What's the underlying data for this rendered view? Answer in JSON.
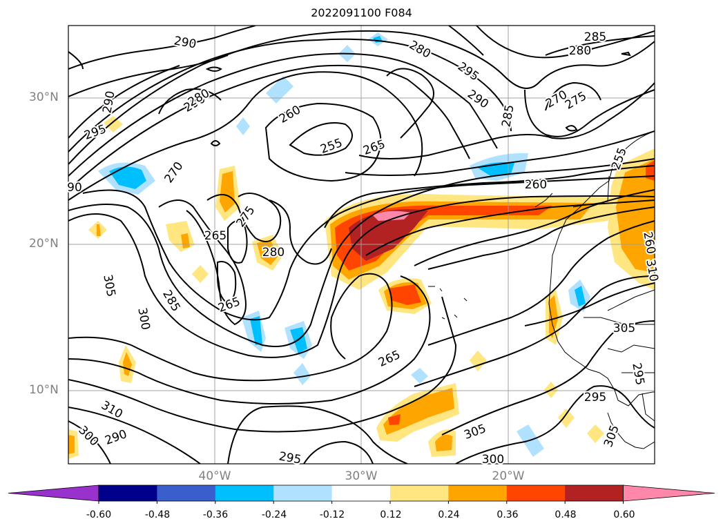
{
  "title": "2022091100 F084",
  "latitude_labels": [
    "30°N",
    "20°N",
    "10°N"
  ],
  "longitude_labels": [
    "40°W",
    "30°W",
    "20°W"
  ],
  "contour_labels": [
    "290",
    "285",
    "280",
    "280",
    "295",
    "290",
    "270",
    "275",
    "290",
    "280",
    "290",
    "260",
    "255",
    "265",
    "285",
    "295",
    "270",
    "260",
    "255",
    "275",
    "265",
    "280",
    "90",
    "260",
    "265",
    "305",
    "300",
    "285",
    "265",
    "305",
    "295",
    "310",
    "300",
    "290",
    "295",
    "305",
    "300",
    "295",
    "305",
    "310",
    "2"
  ],
  "colorbar": {
    "ticks": [
      "-0.60",
      "-0.48",
      "-0.36",
      "-0.24",
      "-0.12",
      "0.12",
      "0.24",
      "0.36",
      "0.48",
      "0.60"
    ],
    "colors": [
      "#9932cc",
      "#00008b",
      "#3a5fcd",
      "#00bfff",
      "#b0e2ff",
      "#ffffff",
      "#ffe680",
      "#ffa500",
      "#ff4500",
      "#b22222",
      "#ff88aa"
    ]
  }
}
